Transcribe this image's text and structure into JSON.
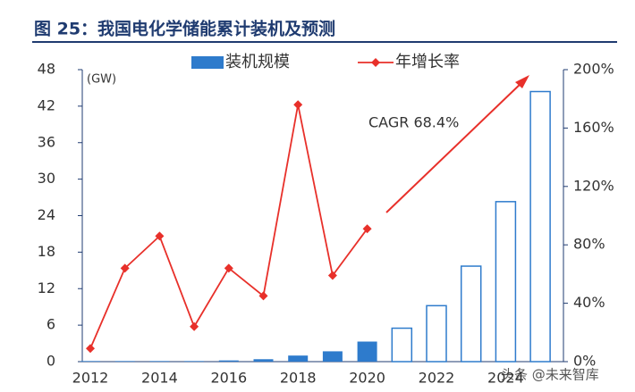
{
  "chart_data": {
    "type": "bar_line",
    "title": "图 25：我国电化学储能累计装机及预测",
    "unit_label": "(GW)",
    "annotation": "CAGR 68.4%",
    "watermark": "头条 @未来智库",
    "categories": [
      "2012",
      null,
      "2014",
      null,
      "2016",
      null,
      "2018",
      null,
      "2020",
      null,
      "2022",
      null,
      "2024",
      null
    ],
    "series": [
      {
        "name": "装机规模",
        "color": "#2e7bcc",
        "kind": "bar",
        "values": [
          0.1,
          0.1,
          0.1,
          0.1,
          0.2,
          0.4,
          1.0,
          1.7,
          3.3,
          5.5,
          9.2,
          15.7,
          26.3,
          44.4
        ],
        "hollow": [
          false,
          false,
          false,
          false,
          false,
          false,
          false,
          false,
          false,
          true,
          true,
          true,
          true,
          true
        ]
      },
      {
        "name": "年增长率",
        "color": "#e8302a",
        "kind": "line",
        "axis": "y2",
        "values": [
          9,
          64,
          86,
          24,
          64,
          45,
          176,
          59,
          91,
          null,
          null,
          null,
          null,
          null
        ]
      }
    ],
    "ylim": [
      0,
      48
    ],
    "yticks": [
      0,
      6,
      12,
      18,
      24,
      30,
      36,
      42,
      48
    ],
    "y2lim": [
      0,
      200
    ],
    "y2ticks": [
      {
        "value": 0,
        "label": "0%"
      },
      {
        "value": 40,
        "label": "40%"
      },
      {
        "value": 80,
        "label": "80%"
      },
      {
        "value": 120,
        "label": "120%"
      },
      {
        "value": 160,
        "label": "160%"
      },
      {
        "value": 200,
        "label": "200%"
      }
    ]
  }
}
